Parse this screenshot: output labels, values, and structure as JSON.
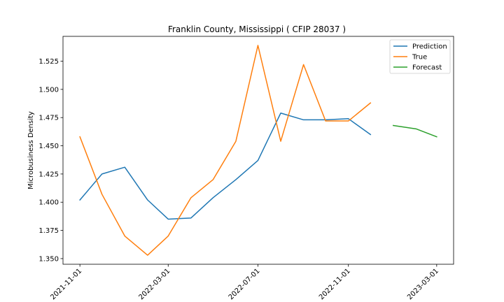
{
  "chart_data": {
    "type": "line",
    "title": "Franklin County, Mississippi ( CFIP 28037 )",
    "xlabel": "",
    "ylabel": "Microbusiness Density",
    "ylim": [
      1.345,
      1.547
    ],
    "yticks": [
      1.35,
      1.375,
      1.4,
      1.425,
      1.45,
      1.475,
      1.5,
      1.525
    ],
    "ytick_labels": [
      "1.350",
      "1.375",
      "1.400",
      "1.425",
      "1.450",
      "1.475",
      "1.500",
      "1.525"
    ],
    "xlim": [
      "2021-10-09",
      "2023-03-24"
    ],
    "xticks": [
      "2021-11-01",
      "2022-03-01",
      "2022-07-01",
      "2022-11-01",
      "2023-03-01"
    ],
    "grid": false,
    "legend_position": "top-right",
    "series": [
      {
        "name": "Prediction",
        "color": "#1f77b4",
        "x": [
          "2021-11-01",
          "2021-12-01",
          "2022-01-01",
          "2022-02-01",
          "2022-03-01",
          "2022-04-01",
          "2022-05-01",
          "2022-06-01",
          "2022-07-01",
          "2022-08-01",
          "2022-09-01",
          "2022-10-01",
          "2022-11-01",
          "2022-12-01"
        ],
        "y": [
          1.402,
          1.425,
          1.431,
          1.402,
          1.385,
          1.386,
          1.404,
          1.42,
          1.437,
          1.479,
          1.473,
          1.473,
          1.474,
          1.46
        ]
      },
      {
        "name": "True",
        "color": "#ff7f0e",
        "x": [
          "2021-11-01",
          "2021-12-01",
          "2022-01-01",
          "2022-02-01",
          "2022-03-01",
          "2022-04-01",
          "2022-05-01",
          "2022-06-01",
          "2022-07-01",
          "2022-08-01",
          "2022-09-01",
          "2022-10-01",
          "2022-11-01",
          "2022-12-01"
        ],
        "y": [
          1.458,
          1.407,
          1.37,
          1.353,
          1.37,
          1.404,
          1.42,
          1.454,
          1.539,
          1.454,
          1.522,
          1.472,
          1.472,
          1.488
        ]
      },
      {
        "name": "Forecast",
        "color": "#2ca02c",
        "x": [
          "2023-01-01",
          "2023-02-01",
          "2023-03-01"
        ],
        "y": [
          1.468,
          1.465,
          1.458
        ]
      }
    ]
  }
}
